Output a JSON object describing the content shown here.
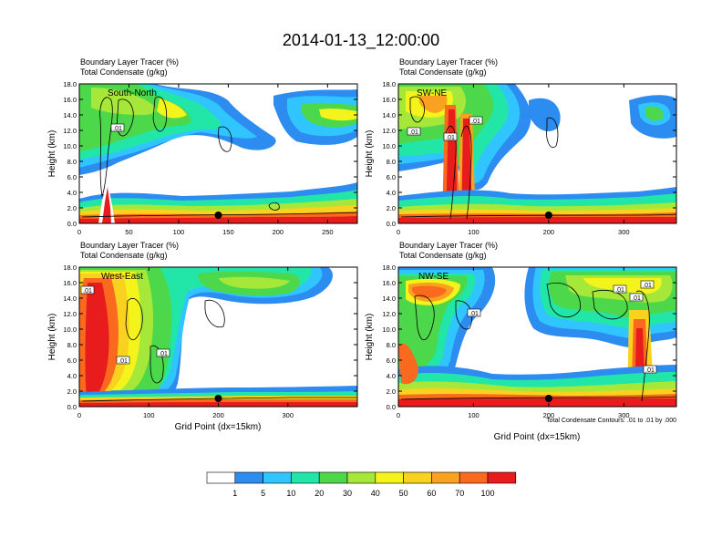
{
  "title": "2014-01-13_12:00:00",
  "colors": {
    "levels": [
      "#ffffff",
      "#2d8cf0",
      "#30c5ff",
      "#22e6a8",
      "#4cd84a",
      "#a6e83a",
      "#f4f41c",
      "#f9d11f",
      "#f9a21f",
      "#f96a1f",
      "#e81c1c"
    ]
  },
  "footnote": "Total Condensate Contours: .01 to .01 by .000",
  "chart_data": [
    {
      "type": "heatmap",
      "panel": "South-North",
      "title_line1": "Boundary Layer Tracer   (%)",
      "title_line2": "Total Condensate   (g/kg)",
      "ylabel": "Height (km)",
      "xlabel": "",
      "xlim": [
        0,
        280
      ],
      "ylim": [
        0,
        18
      ],
      "xticks": [
        0,
        50,
        100,
        150,
        200,
        250
      ],
      "yticks": [
        "0.0",
        "2.0",
        "4.0",
        "6.0",
        "8.0",
        "10.0",
        "12.0",
        "14.0",
        "16.0",
        "18.0"
      ],
      "contour_labels": [
        ".01"
      ],
      "marker_x": 140
    },
    {
      "type": "heatmap",
      "panel": "SW-NE",
      "title_line1": "Boundary Layer Tracer   (%)",
      "title_line2": "Total Condensate   (g/kg)",
      "ylabel": "Height (km)",
      "xlabel": "",
      "xlim": [
        0,
        370
      ],
      "ylim": [
        0,
        18
      ],
      "xticks": [
        0,
        100,
        200,
        300
      ],
      "yticks": [
        "0.0",
        "2.0",
        "4.0",
        "6.0",
        "8.0",
        "10.0",
        "12.0",
        "14.0",
        "16.0",
        "18.0"
      ],
      "contour_labels": [
        ".01",
        ".01",
        ".01"
      ],
      "marker_x": 200
    },
    {
      "type": "heatmap",
      "panel": "West-East",
      "title_line1": "Boundary Layer Tracer   (%)",
      "title_line2": "Total Condensate   (g/kg)",
      "ylabel": "Height (km)",
      "xlabel": "Grid Point (dx=15km)",
      "xlim": [
        0,
        400
      ],
      "ylim": [
        0,
        18
      ],
      "xticks": [
        0,
        100,
        200,
        300
      ],
      "yticks": [
        "0.0",
        "2.0",
        "4.0",
        "6.0",
        "8.0",
        "10.0",
        "12.0",
        "14.0",
        "16.0",
        "18.0"
      ],
      "contour_labels": [
        ".01",
        ".01",
        ".01"
      ],
      "marker_x": 200
    },
    {
      "type": "heatmap",
      "panel": "NW-SE",
      "title_line1": "Boundary Layer Tracer   (%)",
      "title_line2": "Total Condensate   (g/kg)",
      "ylabel": "Height (km)",
      "xlabel": "Grid Point (dx=15km)",
      "xlim": [
        0,
        370
      ],
      "ylim": [
        0,
        18
      ],
      "xticks": [
        0,
        100,
        200,
        300
      ],
      "yticks": [
        "0.0",
        "2.0",
        "4.0",
        "6.0",
        "8.0",
        "10.0",
        "12.0",
        "14.0",
        "16.0",
        "18.0"
      ],
      "contour_labels": [
        ".01",
        ".01",
        ".01",
        ".01",
        ".01"
      ],
      "marker_x": 200
    }
  ],
  "colorbar": {
    "labels": [
      "1",
      "5",
      "10",
      "20",
      "30",
      "40",
      "50",
      "60",
      "70",
      "100"
    ]
  }
}
